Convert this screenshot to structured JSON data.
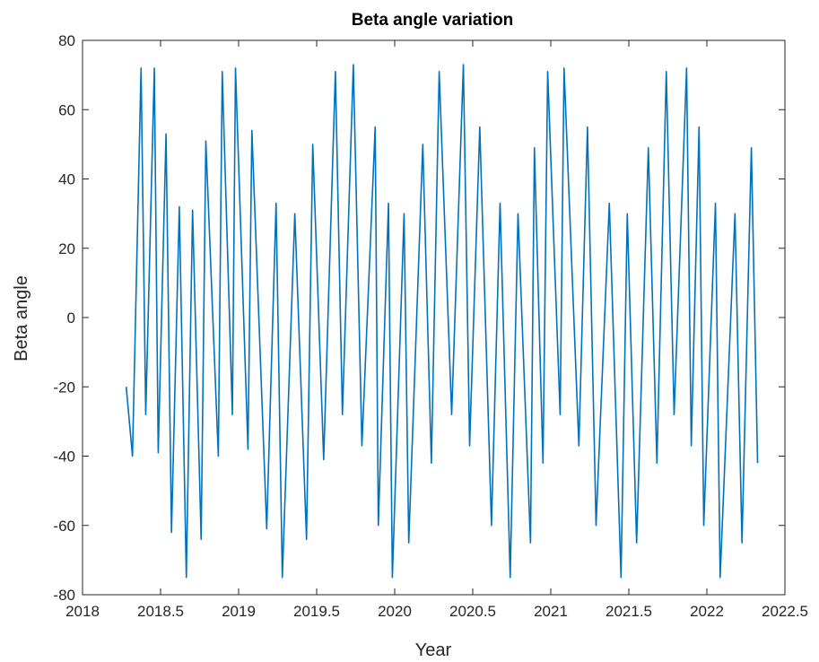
{
  "chart_data": {
    "type": "line",
    "title": "Beta angle variation",
    "xlabel": "Year",
    "ylabel": "Beta angle",
    "xlim": [
      2018,
      2022.5
    ],
    "ylim": [
      -80,
      80
    ],
    "xticks": [
      2018,
      2018.5,
      2019,
      2019.5,
      2020,
      2020.5,
      2021,
      2021.5,
      2022,
      2022.5
    ],
    "xtick_labels": [
      "2018",
      "2018.5",
      "2019",
      "2019.5",
      "2020",
      "2020.5",
      "2021",
      "2021.5",
      "2022",
      "2022.5"
    ],
    "yticks": [
      -80,
      -60,
      -40,
      -20,
      0,
      20,
      40,
      60,
      80
    ],
    "ytick_labels": [
      "-80",
      "-60",
      "-40",
      "-20",
      "0",
      "20",
      "40",
      "60",
      "80"
    ],
    "grid": false,
    "legend": "none",
    "colors": {
      "series": "#0072BD",
      "axes": "#262626",
      "background": "#ffffff"
    },
    "series": [
      {
        "x": [
          2018.28,
          2018.29,
          2018.32,
          2018.375,
          2018.405,
          2018.46,
          2018.485,
          2018.535,
          2018.57,
          2018.62,
          2018.665,
          2018.705,
          2018.76,
          2018.79,
          2018.87,
          2018.895,
          2018.96,
          2018.98,
          2019.06,
          2019.085,
          2019.18,
          2019.24,
          2019.28,
          2019.36,
          2019.435,
          2019.475,
          2019.545,
          2019.62,
          2019.665,
          2019.735,
          2019.79,
          2019.875,
          2019.895,
          2019.96,
          2019.985,
          2020.06,
          2020.09,
          2020.18,
          2020.235,
          2020.285,
          2020.365,
          2020.44,
          2020.48,
          2020.545,
          2020.62,
          2020.675,
          2020.74,
          2020.79,
          2020.87,
          2020.895,
          2020.95,
          2020.98,
          2021.06,
          2021.085,
          2021.18,
          2021.235,
          2021.29,
          2021.375,
          2021.45,
          2021.49,
          2021.55,
          2021.625,
          2021.68,
          2021.74,
          2021.79,
          2021.87,
          2021.9,
          2021.95,
          2021.98,
          2022.055,
          2022.085,
          2022.18,
          2022.225,
          2022.285,
          2022.325
        ],
        "y": [
          -20,
          -25,
          -40,
          72,
          -28,
          72,
          -39,
          53,
          -62,
          32,
          -75,
          31,
          -64,
          51,
          -40,
          71,
          -28,
          72,
          -38,
          54,
          -61,
          33,
          -75,
          30,
          -64,
          50,
          -41,
          71,
          -28,
          73,
          -37,
          55,
          -60,
          33,
          -75,
          30,
          -65,
          50,
          -42,
          71,
          -28,
          73,
          -37,
          55,
          -60,
          33,
          -75,
          30,
          -65,
          49,
          -42,
          71,
          -28,
          72,
          -37,
          55,
          -60,
          33,
          -75,
          30,
          -65,
          49,
          -42,
          71,
          -28,
          72,
          -37,
          55,
          -60,
          33,
          -75,
          30,
          -65,
          49,
          -42
        ]
      }
    ]
  }
}
